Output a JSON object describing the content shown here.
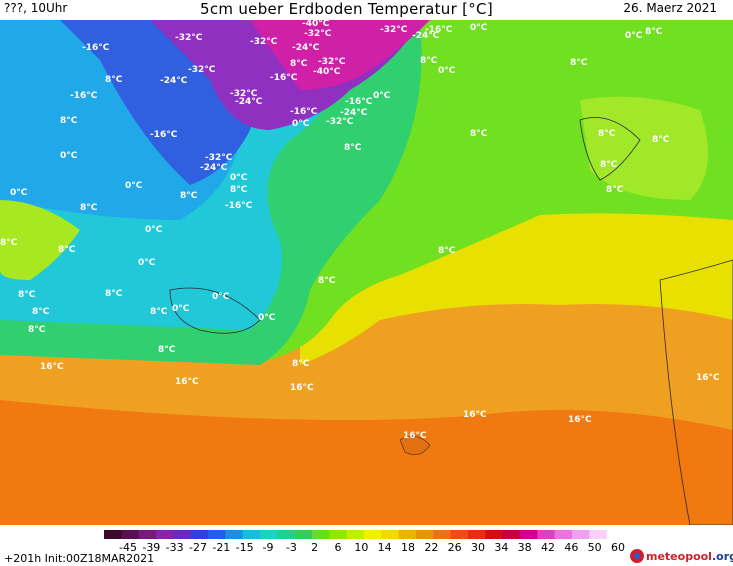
{
  "header": {
    "left": "???, 10Uhr",
    "title": "5cm ueber Erdboden Temperatur [°C]",
    "date": "26. Maerz 2021"
  },
  "map_labels": [
    {
      "text": "-40°C"
    },
    {
      "text": "-32°C"
    },
    {
      "text": "-16°C"
    },
    {
      "text": "-24°C"
    },
    {
      "text": "0°C"
    },
    {
      "text": "8°C"
    },
    {
      "text": "16°C"
    }
  ],
  "colorbar": {
    "ticks": [
      "-45",
      "-39",
      "-33",
      "-27",
      "-21",
      "-15",
      "-9",
      "-3",
      "2",
      "6",
      "10",
      "14",
      "18",
      "22",
      "26",
      "30",
      "34",
      "38",
      "42",
      "46",
      "50",
      "60"
    ],
    "colors": [
      "#3a0a2a",
      "#5a1050",
      "#7a1880",
      "#8a20b0",
      "#6a28c8",
      "#3040d8",
      "#2060e8",
      "#1890e8",
      "#20b8e0",
      "#20d0c0",
      "#20d090",
      "#30d050",
      "#60e020",
      "#90e800",
      "#c0f000",
      "#f0f000",
      "#f0d800",
      "#f0b000",
      "#f09010",
      "#f07010",
      "#e85010",
      "#e03010",
      "#d01010",
      "#c00040",
      "#d00090",
      "#e040c0",
      "#f070e0",
      "#f0a0f0",
      "#f8d0f8",
      "#ffffff"
    ]
  },
  "footer": {
    "init": "+201h Init:00Z18MAR2021",
    "logo_main": "meteopool",
    "logo_tld": ".org"
  }
}
